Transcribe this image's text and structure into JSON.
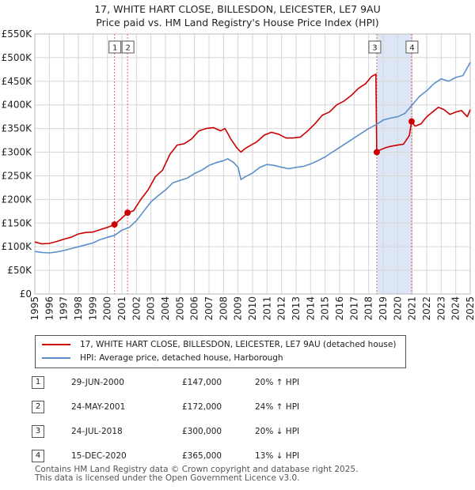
{
  "title_line1": "17, WHITE HART CLOSE, BILLESDON, LEICESTER, LE7 9AU",
  "title_line2": "Price paid vs. HM Land Registry's House Price Index (HPI)",
  "legend": {
    "property_label": "17, WHITE HART CLOSE, BILLESDON, LEICESTER, LE7 9AU (detached house)",
    "hpi_label": "HPI: Average price, detached house, Harborough"
  },
  "transactions": [
    {
      "num": "1",
      "date": "29-JUN-2000",
      "price": "£147,000",
      "hpi": "20% ↑ HPI"
    },
    {
      "num": "2",
      "date": "24-MAY-2001",
      "price": "£172,000",
      "hpi": "24% ↑ HPI"
    },
    {
      "num": "3",
      "date": "24-JUL-2018",
      "price": "£300,000",
      "hpi": "20% ↓ HPI"
    },
    {
      "num": "4",
      "date": "15-DEC-2020",
      "price": "£365,000",
      "hpi": "13% ↓ HPI"
    }
  ],
  "footer_line1": "Contains HM Land Registry data © Crown copyright and database right 2025.",
  "footer_line2": "This data is licensed under the Open Government Licence v3.0.",
  "colors": {
    "property": "#cc0000",
    "hpi": "#5b8fc9",
    "shade": "#dde6f5",
    "grid": "#d6d6d6",
    "marker_line": "#e06666"
  },
  "chart_data": {
    "type": "line",
    "xlim": [
      1995,
      2025
    ],
    "ylim": [
      0,
      550000
    ],
    "yticks": [
      0,
      50000,
      100000,
      150000,
      200000,
      250000,
      300000,
      350000,
      400000,
      450000,
      500000,
      550000
    ],
    "ytick_labels": [
      "£0",
      "£50K",
      "£100K",
      "£150K",
      "£200K",
      "£250K",
      "£300K",
      "£350K",
      "£400K",
      "£450K",
      "£500K",
      "£550K"
    ],
    "xticks": [
      1995,
      1996,
      1997,
      1998,
      1999,
      2000,
      2001,
      2002,
      2003,
      2004,
      2005,
      2006,
      2007,
      2008,
      2009,
      2010,
      2011,
      2012,
      2013,
      2014,
      2015,
      2016,
      2017,
      2018,
      2019,
      2020,
      2021,
      2022,
      2023,
      2024,
      2025
    ],
    "xtick_labels": [
      "1995",
      "1996",
      "1997",
      "1998",
      "1999",
      "2000",
      "2001",
      "2002",
      "2003",
      "2004",
      "2005",
      "2006",
      "2007",
      "2008",
      "2009",
      "2010",
      "2011",
      "2012",
      "2013",
      "2014",
      "2015",
      "2016",
      "2017",
      "2018",
      "2019",
      "2020",
      "2021",
      "2022",
      "2023",
      "2024",
      "2025"
    ],
    "shaded_ranges": [
      [
        2018.56,
        2020.96
      ]
    ],
    "series": [
      {
        "name": "17, WHITE HART CLOSE, BILLESDON, LEICESTER, LE7 9AU (detached house)",
        "x": [
          1995.0,
          1995.5,
          1996.0,
          1996.5,
          1997.0,
          1997.5,
          1998.0,
          1998.5,
          1999.0,
          1999.5,
          2000.0,
          2000.49,
          2000.9,
          2001.39,
          2001.8,
          2002.3,
          2002.8,
          2003.3,
          2003.8,
          2004.3,
          2004.8,
          2005.3,
          2005.8,
          2006.3,
          2006.8,
          2007.3,
          2007.8,
          2008.1,
          2008.5,
          2008.9,
          2009.2,
          2009.5,
          2009.9,
          2010.3,
          2010.8,
          2011.3,
          2011.8,
          2012.3,
          2012.8,
          2013.3,
          2013.8,
          2014.3,
          2014.8,
          2015.3,
          2015.8,
          2016.3,
          2016.8,
          2017.3,
          2017.8,
          2018.2,
          2018.5,
          2018.56,
          2018.8,
          2019.2,
          2019.6,
          2020.0,
          2020.4,
          2020.8,
          2020.96,
          2021.2,
          2021.6,
          2022.0,
          2022.4,
          2022.8,
          2023.2,
          2023.6,
          2024.0,
          2024.4,
          2024.8,
          2025.0
        ],
        "values": [
          110000,
          106000,
          107000,
          111000,
          116000,
          120000,
          127000,
          130000,
          131000,
          136000,
          141000,
          147000,
          158000,
          172000,
          176000,
          200000,
          220000,
          248000,
          262000,
          295000,
          315000,
          318000,
          328000,
          345000,
          350000,
          352000,
          345000,
          350000,
          328000,
          310000,
          300000,
          308000,
          315000,
          322000,
          336000,
          342000,
          338000,
          330000,
          330000,
          332000,
          345000,
          360000,
          378000,
          385000,
          400000,
          408000,
          420000,
          435000,
          445000,
          460000,
          465000,
          300000,
          305000,
          310000,
          313000,
          315000,
          317000,
          335000,
          365000,
          355000,
          360000,
          375000,
          385000,
          395000,
          390000,
          380000,
          385000,
          388000,
          375000,
          390000
        ]
      },
      {
        "name": "HPI: Average price, detached house, Harborough",
        "x": [
          1995.0,
          1995.5,
          1996.0,
          1996.5,
          1997.0,
          1997.5,
          1998.0,
          1998.5,
          1999.0,
          1999.5,
          2000.0,
          2000.5,
          2001.0,
          2001.5,
          2002.0,
          2002.5,
          2003.0,
          2003.5,
          2004.0,
          2004.5,
          2005.0,
          2005.5,
          2006.0,
          2006.5,
          2007.0,
          2007.5,
          2008.0,
          2008.3,
          2008.7,
          2009.0,
          2009.2,
          2009.5,
          2010.0,
          2010.5,
          2011.0,
          2011.5,
          2012.0,
          2012.5,
          2013.0,
          2013.5,
          2014.0,
          2014.5,
          2015.0,
          2015.5,
          2016.0,
          2016.5,
          2017.0,
          2017.5,
          2018.0,
          2018.5,
          2019.0,
          2019.5,
          2020.0,
          2020.5,
          2021.0,
          2021.5,
          2022.0,
          2022.5,
          2023.0,
          2023.5,
          2024.0,
          2024.5,
          2025.0
        ],
        "values": [
          90000,
          88000,
          87000,
          89000,
          92000,
          96000,
          100000,
          104000,
          108000,
          115000,
          120000,
          124000,
          135000,
          141000,
          155000,
          175000,
          195000,
          208000,
          220000,
          235000,
          240000,
          245000,
          255000,
          262000,
          272000,
          278000,
          282000,
          286000,
          278000,
          268000,
          242000,
          248000,
          256000,
          268000,
          274000,
          272000,
          268000,
          265000,
          268000,
          270000,
          275000,
          282000,
          290000,
          300000,
          310000,
          320000,
          330000,
          340000,
          350000,
          358000,
          368000,
          372000,
          375000,
          382000,
          400000,
          418000,
          430000,
          445000,
          455000,
          450000,
          458000,
          462000,
          490000
        ]
      }
    ],
    "sales": [
      {
        "label": "1",
        "x": 2000.49,
        "value": 147000
      },
      {
        "label": "2",
        "x": 2001.39,
        "value": 172000
      },
      {
        "label": "3",
        "x": 2018.56,
        "value": 300000
      },
      {
        "label": "4",
        "x": 2020.96,
        "value": 365000
      }
    ]
  }
}
